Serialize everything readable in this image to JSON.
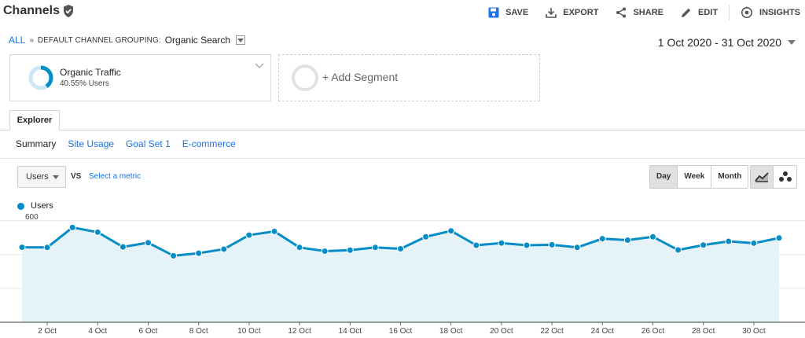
{
  "header": {
    "title": "Channels",
    "actions": [
      {
        "label": "SAVE",
        "icon": "save-icon"
      },
      {
        "label": "EXPORT",
        "icon": "export-icon"
      },
      {
        "label": "SHARE",
        "icon": "share-icon"
      },
      {
        "label": "EDIT",
        "icon": "edit-icon"
      },
      {
        "label": "INSIGHTS",
        "icon": "insights-icon"
      }
    ]
  },
  "breadcrumb": {
    "all": "ALL",
    "separator": "»",
    "grouping": "DEFAULT CHANNEL GROUPING:",
    "value": "Organic Search"
  },
  "date_range": "1 Oct 2020 - 31 Oct 2020",
  "segments": {
    "active": {
      "name": "Organic Traffic",
      "share": "40.55% Users",
      "share_fraction": 0.4055
    },
    "add_label": "+ Add Segment"
  },
  "tabs": {
    "explorer": "Explorer",
    "subtabs": [
      "Summary",
      "Site Usage",
      "Goal Set 1",
      "E-commerce"
    ],
    "active_subtab": 0
  },
  "controls": {
    "metric": "Users",
    "vs": "VS",
    "select_metric": "Select a metric",
    "periods": [
      "Day",
      "Week",
      "Month"
    ],
    "active_period": 0
  },
  "colors": {
    "accent": "#058dc7",
    "area_fill": "#e5f3f9",
    "link": "#1a73e8"
  },
  "chart_data": {
    "type": "area",
    "series": [
      {
        "name": "Users",
        "values": [
          443,
          442,
          560,
          532,
          445,
          470,
          393,
          408,
          432,
          515,
          537,
          442,
          420,
          426,
          442,
          434,
          505,
          540,
          455,
          468,
          455,
          458,
          442,
          494,
          485,
          505,
          427,
          456,
          478,
          467,
          498
        ]
      }
    ],
    "x": [
      "1 Oct",
      "2 Oct",
      "3 Oct",
      "4 Oct",
      "5 Oct",
      "6 Oct",
      "7 Oct",
      "8 Oct",
      "9 Oct",
      "10 Oct",
      "11 Oct",
      "12 Oct",
      "13 Oct",
      "14 Oct",
      "15 Oct",
      "16 Oct",
      "17 Oct",
      "18 Oct",
      "19 Oct",
      "20 Oct",
      "21 Oct",
      "22 Oct",
      "23 Oct",
      "24 Oct",
      "25 Oct",
      "26 Oct",
      "27 Oct",
      "28 Oct",
      "29 Oct",
      "30 Oct",
      "31 Oct"
    ],
    "x_tick_labels": [
      "2 Oct",
      "4 Oct",
      "6 Oct",
      "8 Oct",
      "10 Oct",
      "12 Oct",
      "14 Oct",
      "16 Oct",
      "18 Oct",
      "20 Oct",
      "22 Oct",
      "24 Oct",
      "26 Oct",
      "28 Oct",
      "30 Oct"
    ],
    "y_ticks": [
      200,
      400,
      600
    ],
    "ylim": [
      0,
      650
    ],
    "legend": "top-left",
    "grid": true
  }
}
